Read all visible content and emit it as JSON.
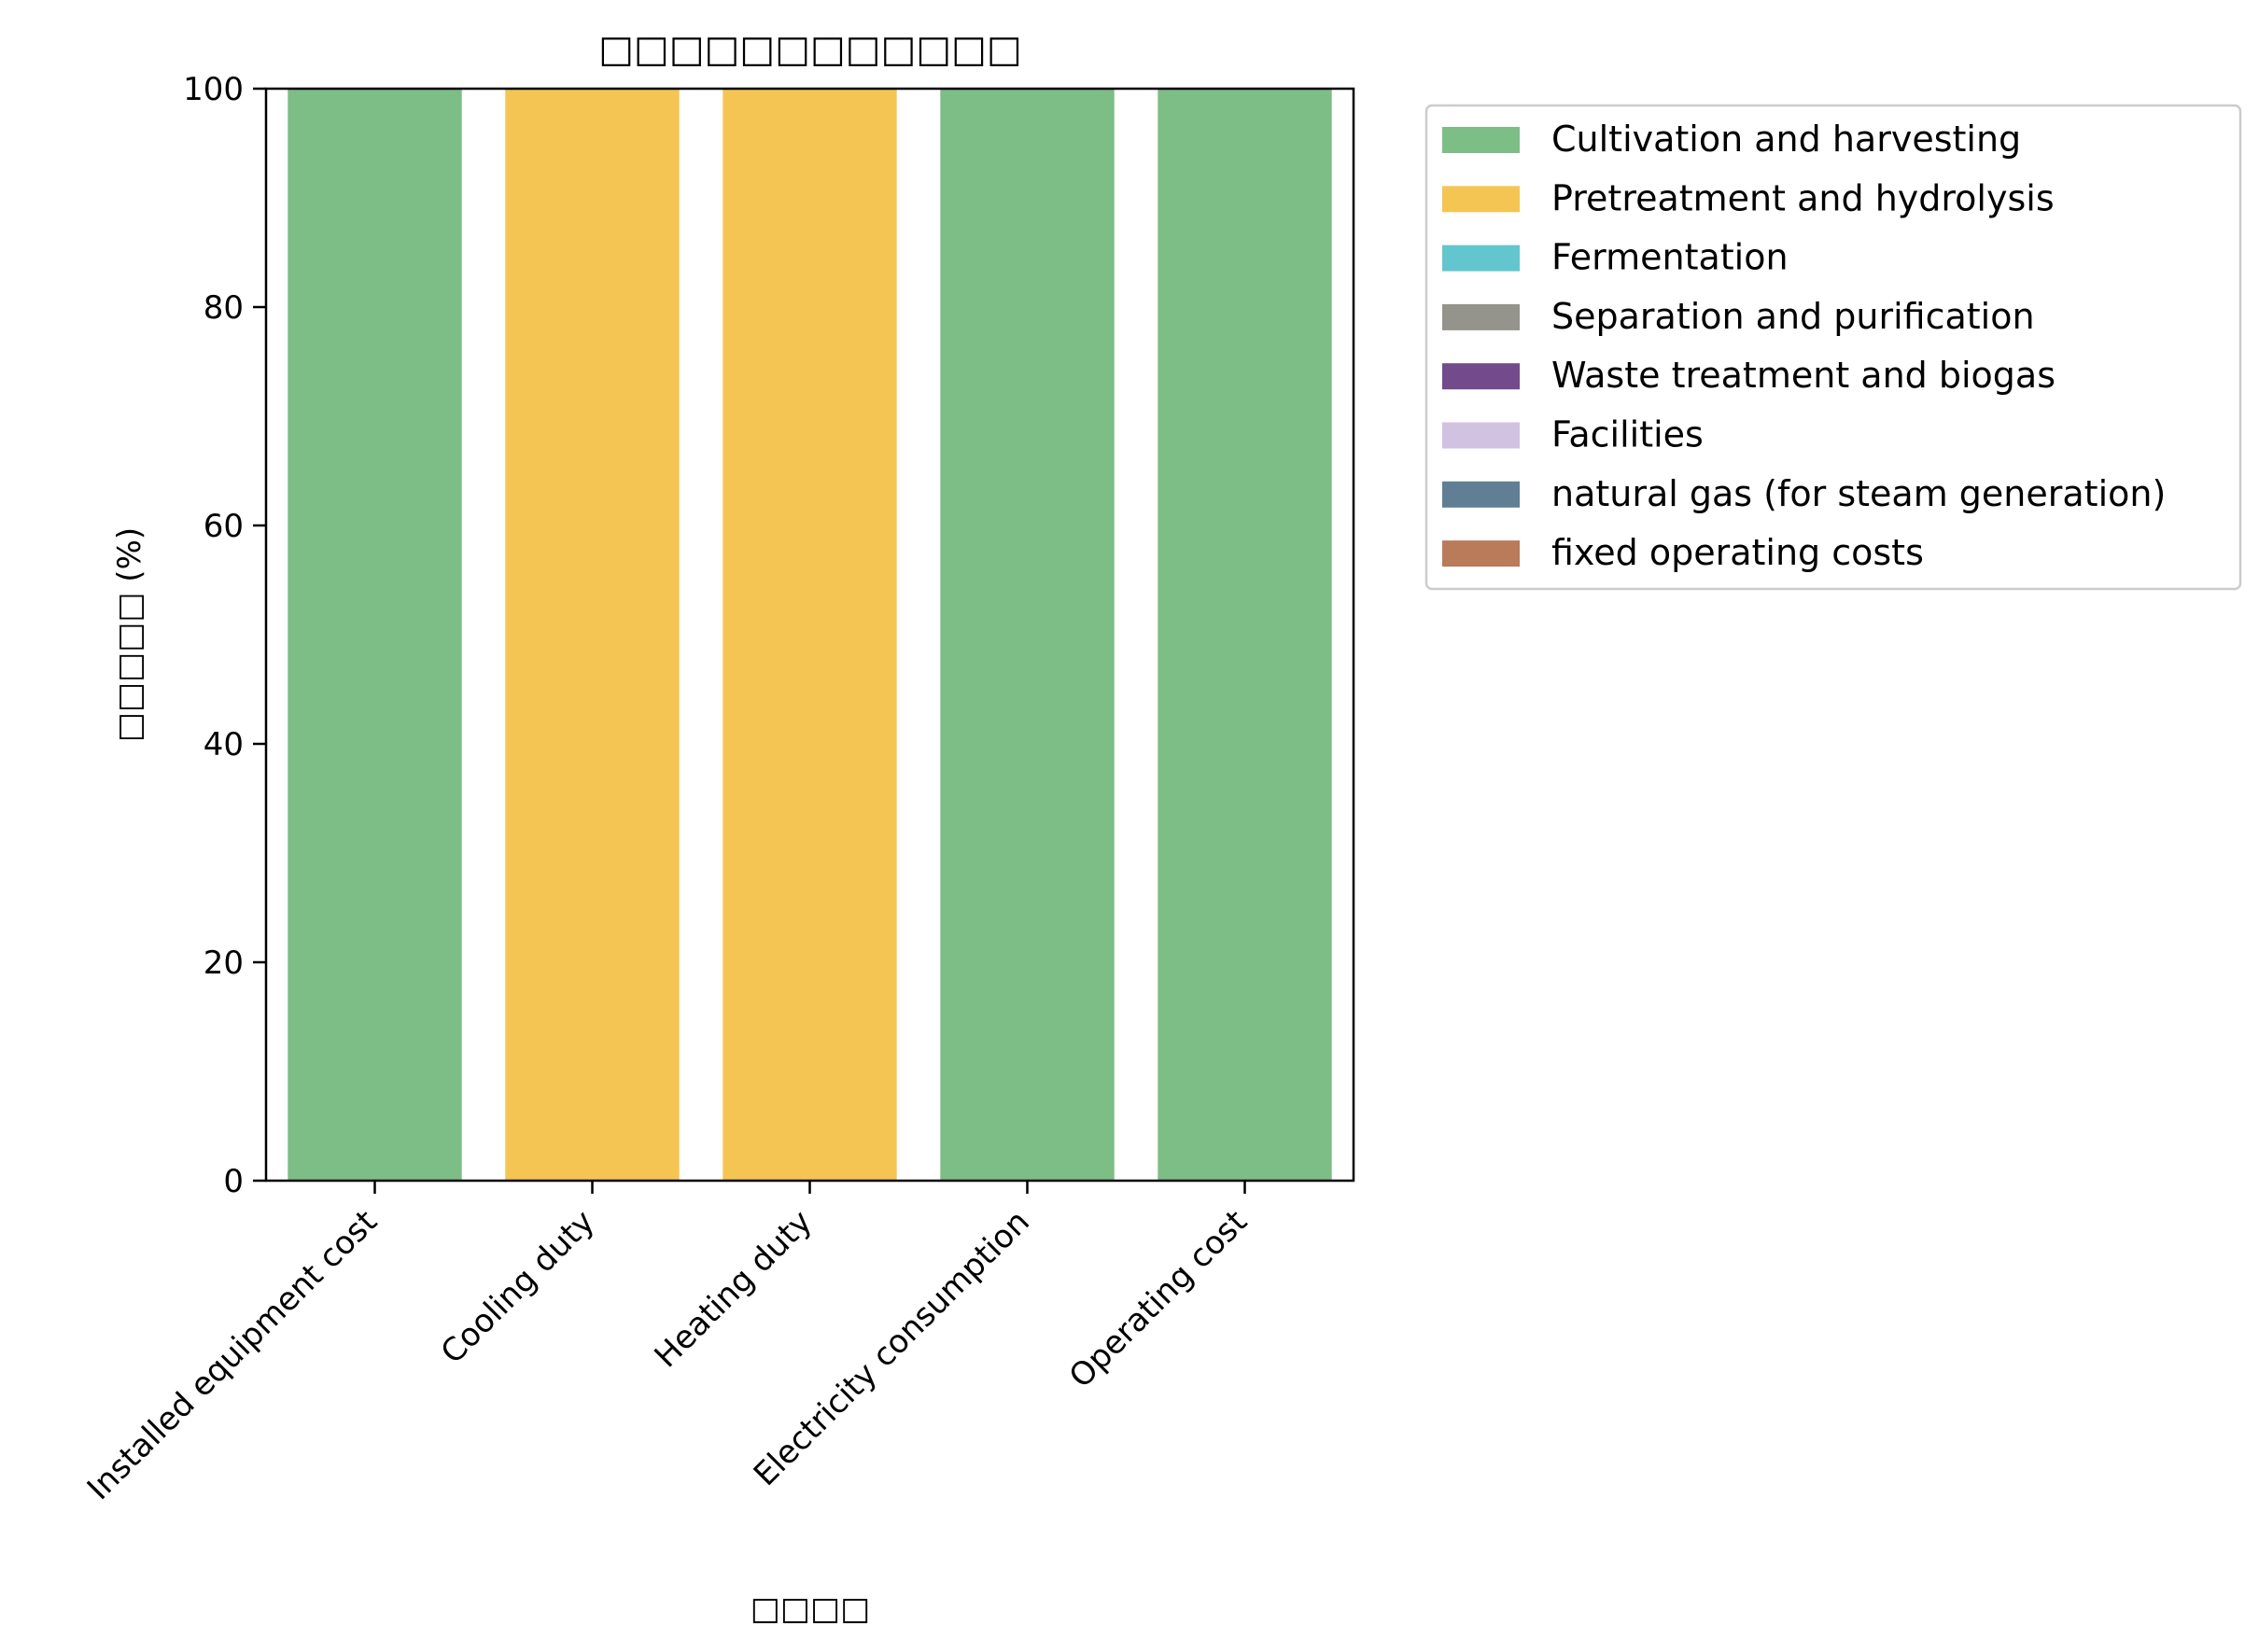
{
  "chart_data": {
    "type": "bar",
    "stacked": true,
    "title": "□□□□□□□□□□□□",
    "xlabel": "□□□□",
    "ylabel": "□□□□□ (%)",
    "ylim": [
      0,
      100
    ],
    "yticks": [
      0,
      20,
      40,
      60,
      80,
      100
    ],
    "categories": [
      "Installed equipment cost",
      "Cooling duty",
      "Heating duty",
      "Electricity consumption",
      "Operating cost"
    ],
    "series": [
      {
        "name": "Cultivation and harvesting",
        "color": "#7dbd86",
        "values": [
          100,
          0,
          0,
          100,
          100
        ]
      },
      {
        "name": "Pretreatment and hydrolysis",
        "color": "#f5c554",
        "values": [
          0,
          100,
          100,
          0,
          0
        ]
      },
      {
        "name": "Fermentation",
        "color": "#63c6ce",
        "values": [
          0,
          0,
          0,
          0,
          0
        ]
      },
      {
        "name": "Separation and purification",
        "color": "#94948c",
        "values": [
          0,
          0,
          0,
          0,
          0
        ]
      },
      {
        "name": "Waste treatment and biogas",
        "color": "#734a8c",
        "values": [
          0,
          0,
          0,
          0,
          0
        ]
      },
      {
        "name": "Facilities",
        "color": "#d2c2e2",
        "values": [
          0,
          0,
          0,
          0,
          0
        ]
      },
      {
        "name": "natural gas (for steam generation)",
        "color": "#607f94",
        "values": [
          0,
          0,
          0,
          0,
          0
        ]
      },
      {
        "name": "fixed operating costs",
        "color": "#b97b5a",
        "values": [
          0,
          0,
          0,
          0,
          0
        ]
      }
    ],
    "legend": "outside-right",
    "grid": false
  }
}
